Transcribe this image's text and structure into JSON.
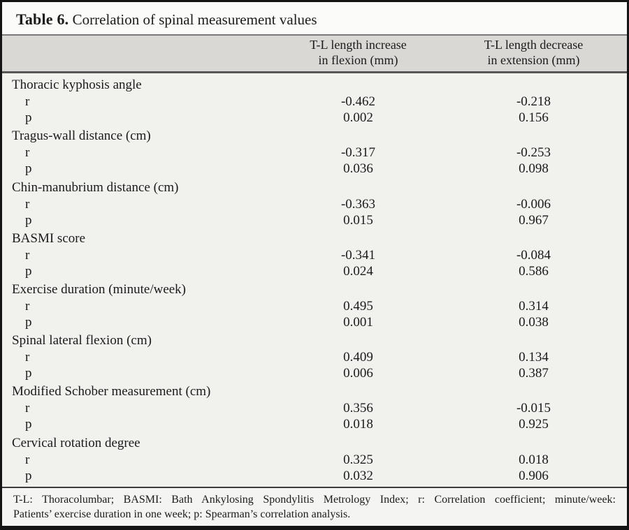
{
  "table": {
    "title_label": "Table 6.",
    "title_text": "Correlation of spinal measurement values",
    "columns": [
      "T-L length increase\nin flexion (mm)",
      "T-L length decrease\nin extension (mm)"
    ],
    "stat_labels": {
      "r": "r",
      "p": "p"
    },
    "rows": [
      {
        "label": "Thoracic kyphosis angle",
        "r": [
          "-0.462",
          "-0.218"
        ],
        "p": [
          "0.002",
          "0.156"
        ]
      },
      {
        "label": "Tragus-wall distance (cm)",
        "r": [
          "-0.317",
          "-0.253"
        ],
        "p": [
          "0.036",
          "0.098"
        ]
      },
      {
        "label": "Chin-manubrium distance (cm)",
        "r": [
          "-0.363",
          "-0.006"
        ],
        "p": [
          "0.015",
          "0.967"
        ]
      },
      {
        "label": "BASMI score",
        "r": [
          "-0.341",
          "-0.084"
        ],
        "p": [
          "0.024",
          "0.586"
        ]
      },
      {
        "label": "Exercise duration (minute/week)",
        "r": [
          "0.495",
          "0.314"
        ],
        "p": [
          "0.001",
          "0.038"
        ]
      },
      {
        "label": "Spinal lateral flexion (cm)",
        "r": [
          "0.409",
          "0.134"
        ],
        "p": [
          "0.006",
          "0.387"
        ]
      },
      {
        "label": "Modified Schober measurement (cm)",
        "r": [
          "0.356",
          "-0.015"
        ],
        "p": [
          "0.018",
          "0.925"
        ]
      },
      {
        "label": "Cervical rotation degree",
        "r": [
          "0.325",
          "0.018"
        ],
        "p": [
          "0.032",
          "0.906"
        ]
      }
    ],
    "footnote_lines": [
      "T-L: Thoracolumbar; BASMI: Bath Ankylosing Spondylitis Metrology Index; r: Correlation coefficient; minute/week:",
      "Patients’ exercise duration in one week; p: Spearman’s correlation analysis."
    ]
  },
  "colors": {
    "outer_border": "#141414",
    "header_row_bg": "#d9d8d5",
    "body_bg": "#f1f1ee",
    "caption_bg": "#fbfbf9",
    "footnote_bg": "#f4f4f2"
  }
}
